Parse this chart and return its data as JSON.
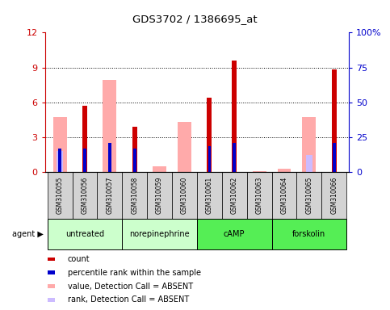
{
  "title": "GDS3702 / 1386695_at",
  "samples": [
    "GSM310055",
    "GSM310056",
    "GSM310057",
    "GSM310058",
    "GSM310059",
    "GSM310060",
    "GSM310061",
    "GSM310062",
    "GSM310063",
    "GSM310064",
    "GSM310065",
    "GSM310066"
  ],
  "agent_defs": [
    {
      "label": "untreated",
      "indices": [
        0,
        1,
        2
      ],
      "color": "#ccffcc"
    },
    {
      "label": "norepinephrine",
      "indices": [
        3,
        4,
        5
      ],
      "color": "#ccffcc"
    },
    {
      "label": "cAMP",
      "indices": [
        6,
        7,
        8
      ],
      "color": "#55ee55"
    },
    {
      "label": "forskolin",
      "indices": [
        9,
        10,
        11
      ],
      "color": "#55ee55"
    }
  ],
  "count": [
    0.0,
    5.7,
    0.0,
    3.9,
    0.0,
    0.0,
    6.4,
    9.6,
    0.0,
    0.0,
    0.0,
    8.8
  ],
  "percentile": [
    2.0,
    2.0,
    2.5,
    2.0,
    0.0,
    0.0,
    2.2,
    2.5,
    0.0,
    0.0,
    0.0,
    2.5
  ],
  "value_absent": [
    4.7,
    0.0,
    7.9,
    0.0,
    0.5,
    4.3,
    0.0,
    0.0,
    0.1,
    0.3,
    4.7,
    0.0
  ],
  "rank_absent": [
    1.8,
    0.0,
    0.0,
    0.0,
    0.0,
    0.0,
    0.0,
    0.0,
    0.0,
    0.0,
    1.5,
    0.0
  ],
  "ylim": [
    0,
    12
  ],
  "y2lim": [
    0,
    100
  ],
  "yticks": [
    0,
    3,
    6,
    9,
    12
  ],
  "y2ticks": [
    0,
    25,
    50,
    75,
    100
  ],
  "colors": {
    "count": "#cc0000",
    "percentile": "#0000cc",
    "value_absent": "#ffaaaa",
    "rank_absent": "#ccbbff",
    "sample_box": "#d3d3d3"
  },
  "legend_items": [
    [
      "#cc0000",
      "count"
    ],
    [
      "#0000cc",
      "percentile rank within the sample"
    ],
    [
      "#ffaaaa",
      "value, Detection Call = ABSENT"
    ],
    [
      "#ccbbff",
      "rank, Detection Call = ABSENT"
    ]
  ]
}
